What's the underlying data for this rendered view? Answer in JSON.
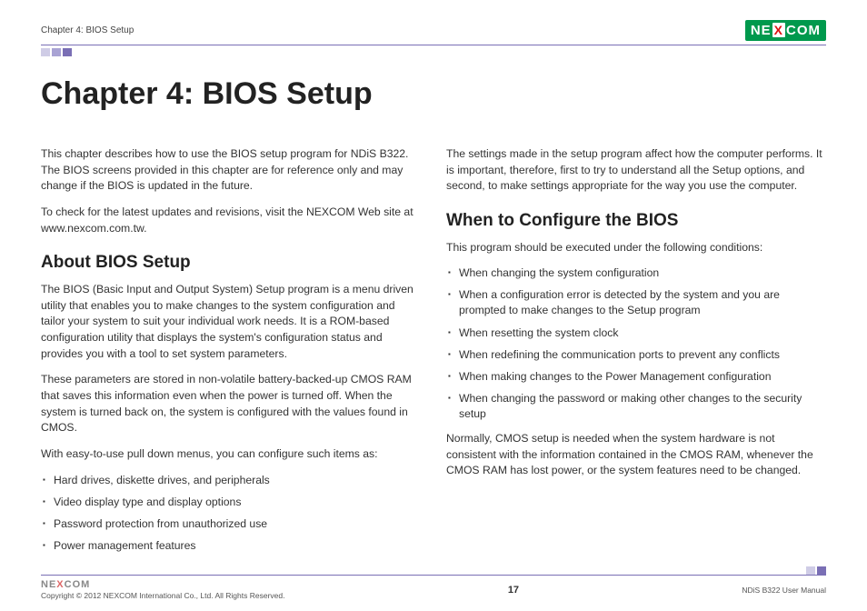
{
  "header": {
    "chapter_label": "Chapter 4: BIOS Setup",
    "logo_pre": "NE",
    "logo_x": "X",
    "logo_post": "COM"
  },
  "title": "Chapter 4: BIOS Setup",
  "left": {
    "intro1": "This chapter describes how to use the BIOS setup program for NDiS B322. The BIOS screens provided in this chapter are for reference only and may change if the BIOS is updated in the future.",
    "intro2": "To check for the latest updates and revisions, visit the NEXCOM Web site at www.nexcom.com.tw.",
    "about_h": "About BIOS Setup",
    "about_p1": "The BIOS (Basic Input and Output System) Setup program is a menu driven utility that enables you to make changes to the system configuration and tailor your system to suit your individual work needs. It is a ROM-based configuration utility that displays the system's configuration status and provides you with a tool to set system parameters.",
    "about_p2": "These parameters are stored in non-volatile battery-backed-up CMOS RAM that saves this information even when the power is turned off. When the system is turned back on, the system is configured with the values found in CMOS.",
    "about_p3": "With easy-to-use pull down menus, you can configure such items as:",
    "items": [
      "Hard drives, diskette drives, and peripherals",
      "Video display type and display options",
      "Password protection from unauthorized use",
      "Power management features"
    ]
  },
  "right": {
    "intro": "The settings made in the setup program affect how the computer performs. It is important, therefore, first to try to understand all the Setup options, and second, to make settings appropriate for the way you use the computer.",
    "when_h": "When to Configure the BIOS",
    "when_sub": "This program should be executed under the following conditions:",
    "items": [
      "When changing the system configuration",
      "When a configuration error is detected by the system and you are prompted to make changes to the Setup program",
      "When resetting the system clock",
      "When redefining the communication ports to prevent any conflicts",
      "When making changes to the Power Management configuration",
      "When changing the password or making other changes to the security setup"
    ],
    "closing": "Normally, CMOS setup is needed when the system hardware is not consistent with the information contained in the CMOS RAM, whenever the CMOS RAM has lost power, or the system features need to be changed."
  },
  "footer": {
    "logo_pre": "NE",
    "logo_x": "X",
    "logo_post": "COM",
    "copyright": "Copyright © 2012 NEXCOM International Co., Ltd. All Rights Reserved.",
    "page": "17",
    "doc": "NDiS B322 User Manual"
  }
}
